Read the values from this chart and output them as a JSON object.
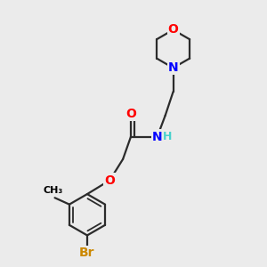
{
  "bg_color": "#ebebeb",
  "atom_colors": {
    "C": "#000000",
    "H": "#48d1cc",
    "N": "#0000ff",
    "O": "#ff0000",
    "Br": "#cc8800"
  },
  "bond_color": "#2b2b2b",
  "bond_width": 1.6,
  "figsize": [
    3.0,
    3.0
  ],
  "dpi": 100,
  "xlim": [
    0,
    10
  ],
  "ylim": [
    0,
    10
  ]
}
